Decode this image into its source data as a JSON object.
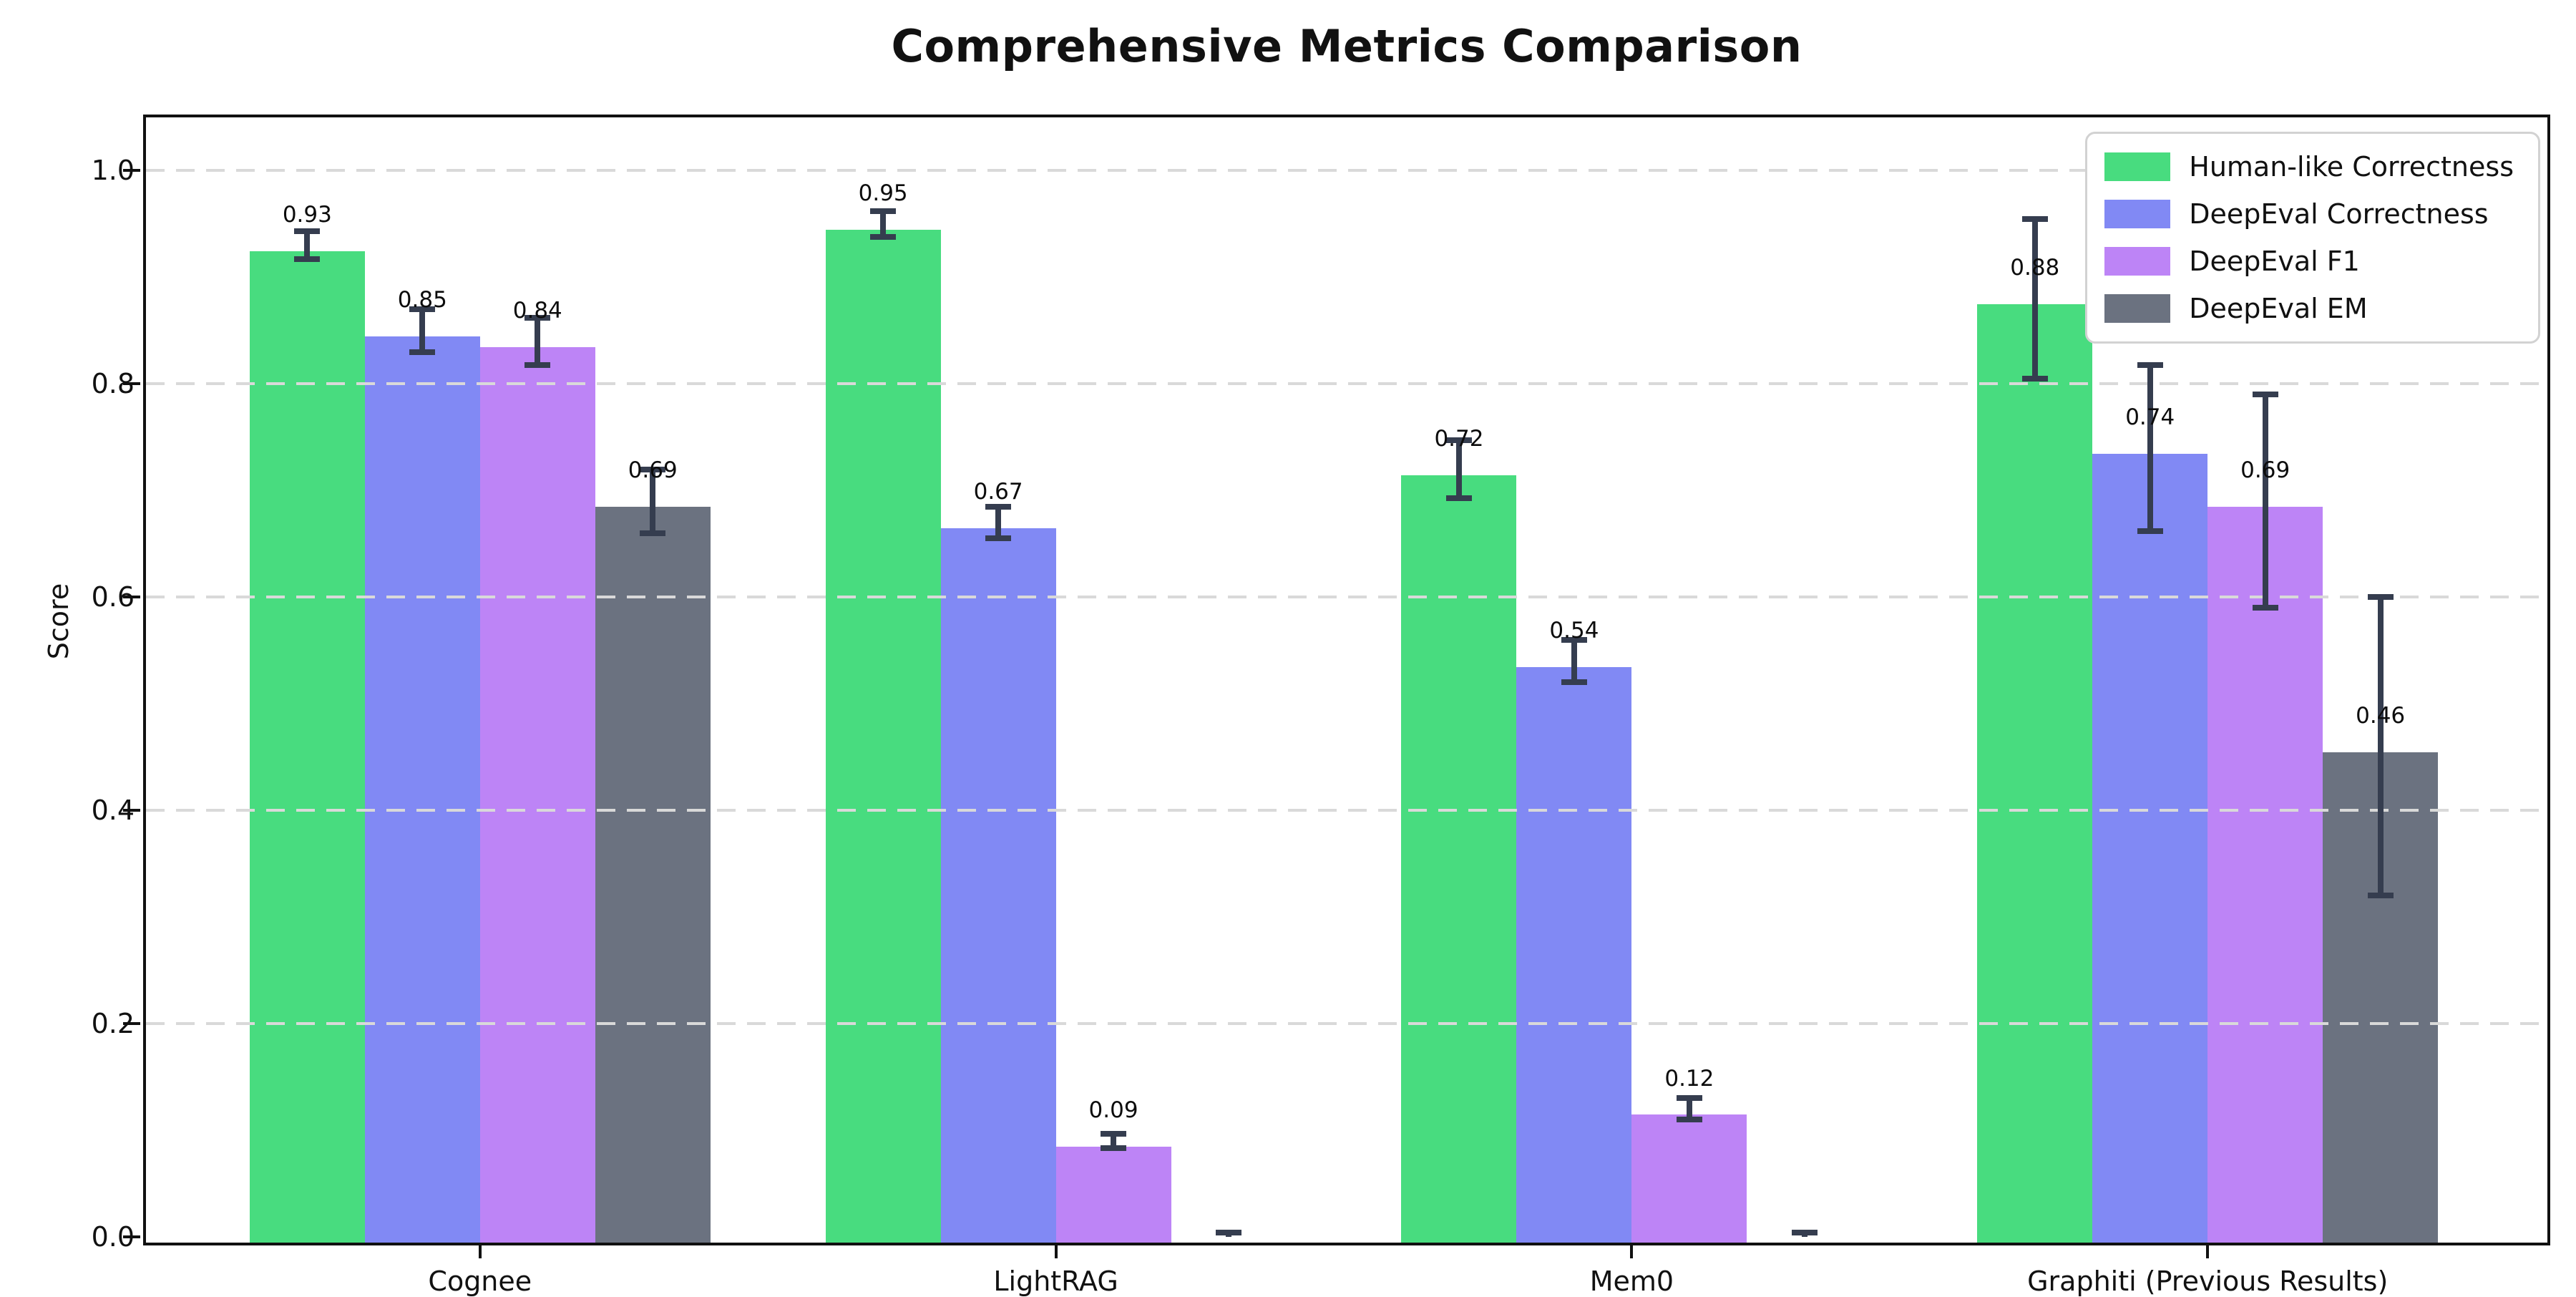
{
  "chart_data": {
    "type": "bar",
    "title": "Comprehensive Metrics Comparison",
    "xlabel": "",
    "ylabel": "Score",
    "categories": [
      "Cognee",
      "LightRAG",
      "Mem0",
      "Graphiti (Previous Results)"
    ],
    "series": [
      {
        "name": "Human-like Correctness",
        "color": "#48dc7f",
        "values": [
          0.93,
          0.95,
          0.72,
          0.88
        ],
        "errors": [
          0.013,
          0.012,
          0.027,
          0.075
        ],
        "value_labels": [
          "0.93",
          "0.95",
          "0.72",
          "0.88"
        ]
      },
      {
        "name": "DeepEval Correctness",
        "color": "#8189f4",
        "values": [
          0.85,
          0.67,
          0.54,
          0.74
        ],
        "errors": [
          0.02,
          0.015,
          0.02,
          0.078
        ],
        "value_labels": [
          "0.85",
          "0.67",
          "0.54",
          "0.74"
        ]
      },
      {
        "name": "DeepEval F1",
        "color": "#bd84f6",
        "values": [
          0.84,
          0.09,
          0.12,
          0.69
        ],
        "errors": [
          0.022,
          0.007,
          0.01,
          0.1
        ],
        "value_labels": [
          "0.84",
          "0.09",
          "0.12",
          "0.69"
        ]
      },
      {
        "name": "DeepEval EM",
        "color": "#6b7280",
        "values": [
          0.69,
          0.0,
          0.0,
          0.46
        ],
        "errors": [
          0.03,
          0.004,
          0.004,
          0.14
        ],
        "value_labels": [
          "0.69",
          "",
          "",
          "0.46"
        ]
      }
    ],
    "yticks": [
      "0.0",
      "0.2",
      "0.4",
      "0.6",
      "0.8",
      "1.0"
    ],
    "ylim": [
      0,
      1.05
    ],
    "grid": "horizontal dashed, drawn over bars",
    "grid_color": "#d9d9d9",
    "errorbar_color": "#353d4f",
    "legend_position": "upper right",
    "background": "#ffffff"
  }
}
